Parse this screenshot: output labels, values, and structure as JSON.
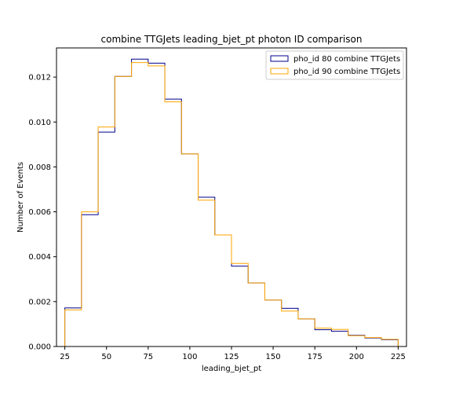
{
  "chart_data": {
    "type": "step",
    "title": "combine TTGJets leading_bjet_pt photon ID comparison",
    "xlabel": "leading_bjet_pt",
    "ylabel": "Number of Events",
    "xlim": [
      20,
      230
    ],
    "ylim": [
      0,
      0.0133
    ],
    "xticks": [
      25,
      50,
      75,
      100,
      125,
      150,
      175,
      200,
      225
    ],
    "xtick_labels": [
      "25",
      "50",
      "75",
      "100",
      "125",
      "150",
      "175",
      "200",
      "225"
    ],
    "yticks": [
      0,
      0.002,
      0.004,
      0.006,
      0.008,
      0.01,
      0.012
    ],
    "ytick_labels": [
      "0.000",
      "0.002",
      "0.004",
      "0.006",
      "0.008",
      "0.010",
      "0.012"
    ],
    "bin_edges": [
      25,
      35,
      45,
      55,
      65,
      75,
      85,
      95,
      105,
      115,
      125,
      135,
      145,
      155,
      165,
      175,
      185,
      195,
      205,
      215,
      225
    ],
    "legend_position": "top-right",
    "grid": false,
    "series": [
      {
        "name": "pho_id 80 combine TTGJets",
        "color": "#00008b",
        "values": [
          0.00172,
          0.00587,
          0.00955,
          0.01203,
          0.0128,
          0.01262,
          0.01102,
          0.00858,
          0.00665,
          0.00497,
          0.00358,
          0.00283,
          0.00207,
          0.0017,
          0.00123,
          0.00075,
          0.00068,
          0.0005,
          0.00038,
          0.0003
        ]
      },
      {
        "name": "pho_id 90 combine TTGJets",
        "color": "#ffa500",
        "values": [
          0.00163,
          0.006,
          0.00978,
          0.01203,
          0.01265,
          0.0125,
          0.0109,
          0.00858,
          0.00652,
          0.00497,
          0.0037,
          0.00283,
          0.00207,
          0.00158,
          0.00123,
          0.00082,
          0.00076,
          0.00048,
          0.0004,
          0.00032
        ]
      }
    ]
  }
}
